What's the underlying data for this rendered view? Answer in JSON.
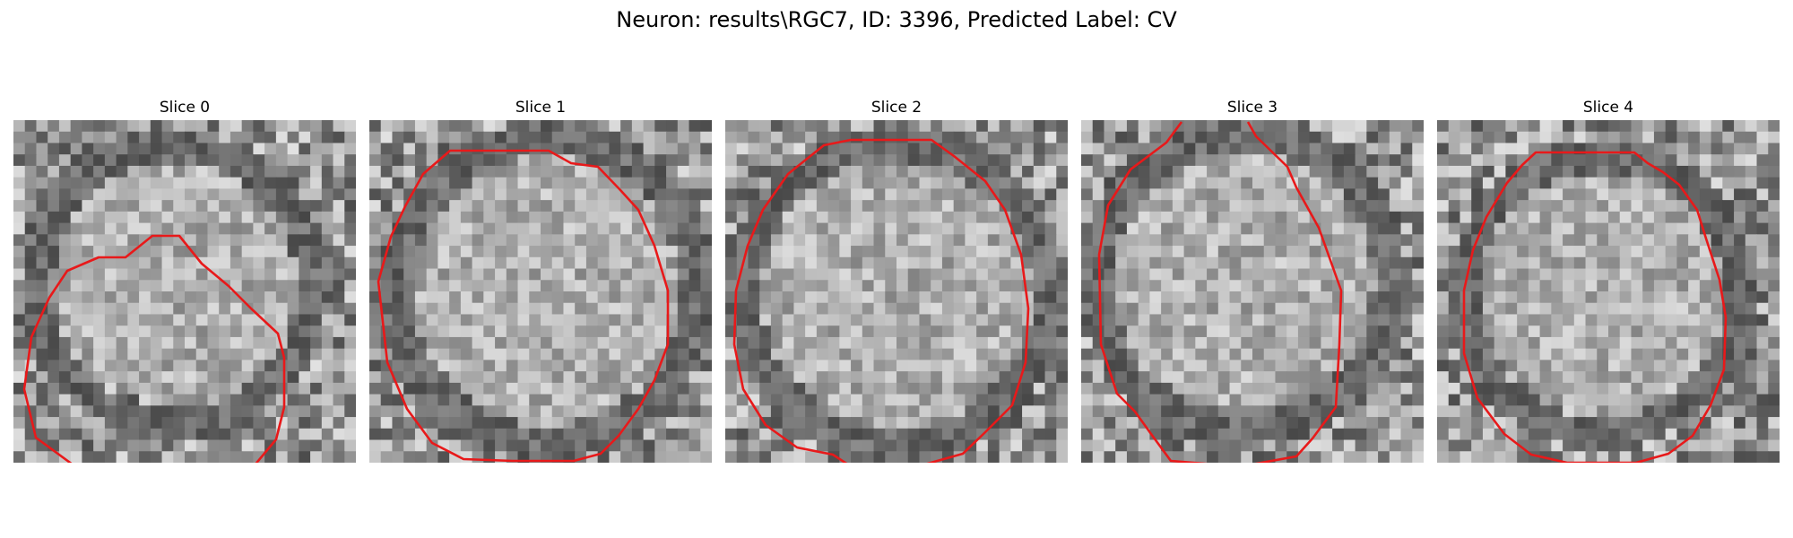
{
  "figure": {
    "title": "Neuron: results\\RGC7, ID: 3396, Predicted Label: CV"
  },
  "panels": [
    {
      "title": "Slice 0"
    },
    {
      "title": "Slice 1"
    },
    {
      "title": "Slice 2"
    },
    {
      "title": "Slice 3"
    },
    {
      "title": "Slice 4"
    }
  ],
  "colors": {
    "contour": "#e8191a",
    "background": "#ffffff"
  }
}
